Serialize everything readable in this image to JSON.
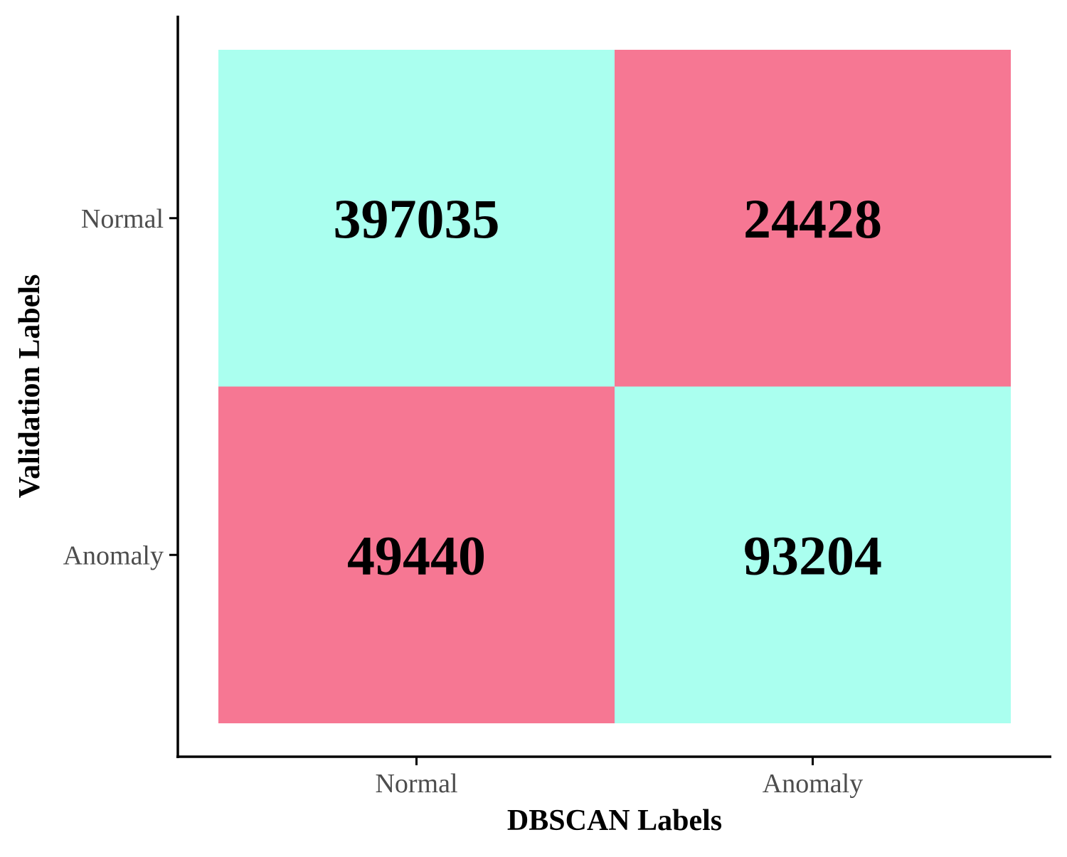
{
  "chart_data": {
    "type": "heatmap",
    "title": "",
    "xlabel": "DBSCAN Labels",
    "ylabel": "Validation Labels",
    "x_categories": [
      "Normal",
      "Anomaly"
    ],
    "y_categories": [
      "Normal",
      "Anomaly"
    ],
    "cells": [
      {
        "x": "Normal",
        "y": "Normal",
        "value": 397035,
        "label": "397035",
        "color": "#aaffef"
      },
      {
        "x": "Anomaly",
        "y": "Normal",
        "value": 24428,
        "label": "24428",
        "color": "#f67793"
      },
      {
        "x": "Normal",
        "y": "Anomaly",
        "value": 49440,
        "label": "49440",
        "color": "#f67793"
      },
      {
        "x": "Anomaly",
        "y": "Anomaly",
        "value": 93204,
        "label": "93204",
        "color": "#aaffef"
      }
    ],
    "grid": false,
    "legend": "none",
    "colors": {
      "correct": "#aaffef",
      "incorrect": "#f67793",
      "axis": "#000000",
      "tick_text": "#4d4d4d"
    }
  }
}
